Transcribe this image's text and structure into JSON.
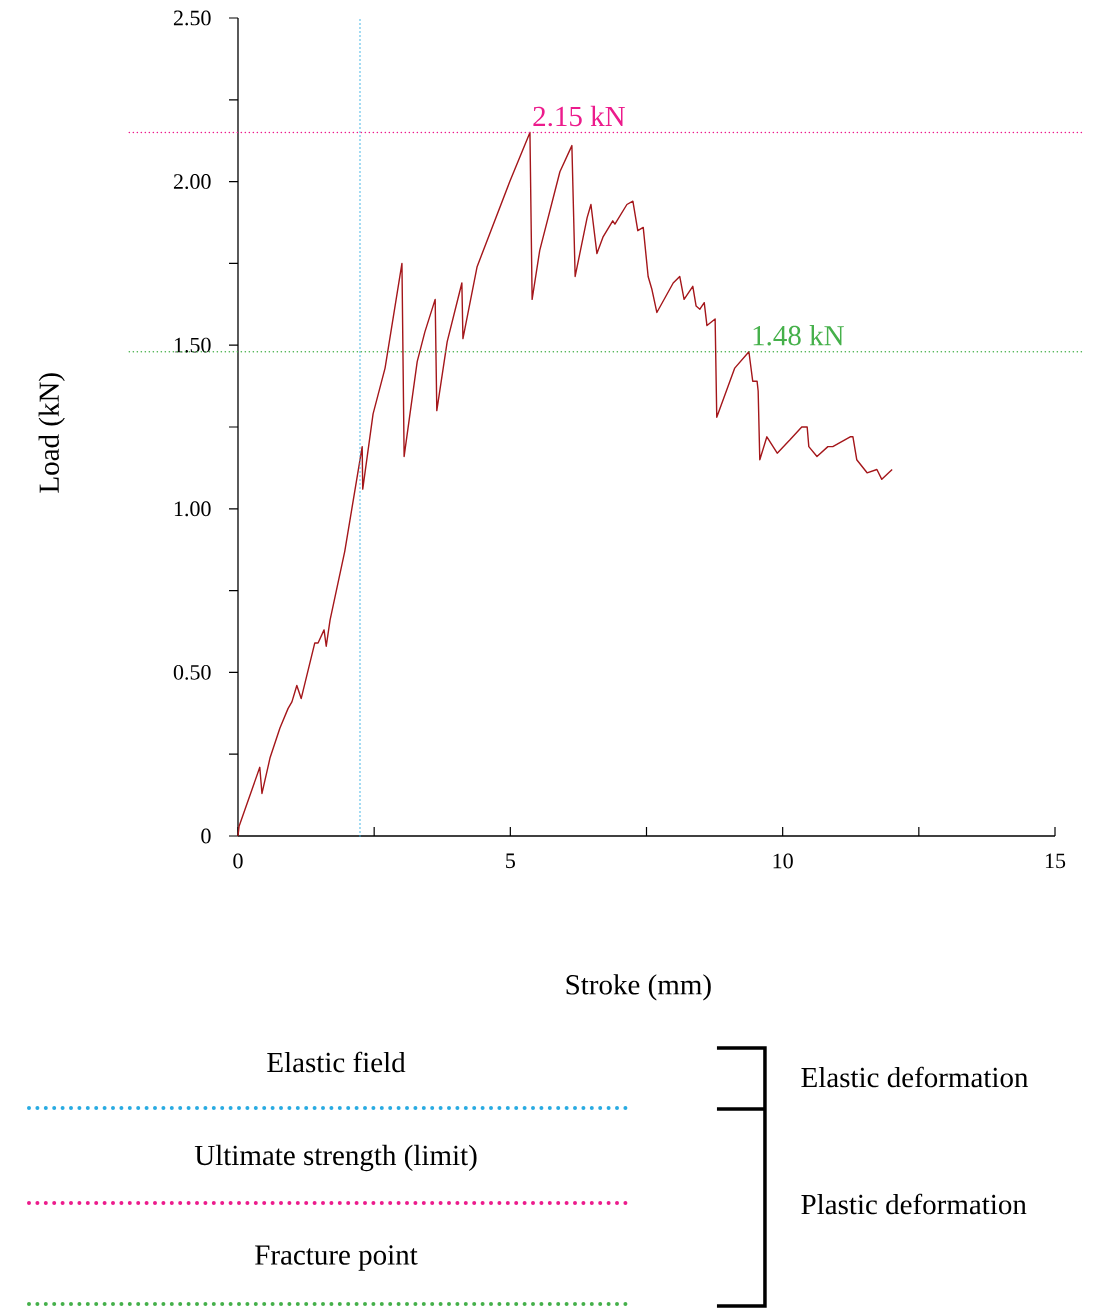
{
  "chart_data": {
    "type": "line",
    "xlabel": "Stroke (mm)",
    "ylabel": "Load (kN)",
    "xlim": [
      0,
      15
    ],
    "ylim": [
      0,
      2.5
    ],
    "xticks": [
      0,
      {
        "value": 2.5,
        "label": null
      },
      5,
      {
        "value": 7.5,
        "label": null
      },
      10,
      {
        "value": 12.5,
        "label": null
      },
      15
    ],
    "yticks": [
      0,
      {
        "value": 0.25,
        "label": null
      },
      {
        "value": 0.5,
        "label": "0.50"
      },
      {
        "value": 0.75,
        "label": null
      },
      {
        "value": 1.0,
        "label": "1.00"
      },
      {
        "value": 1.25,
        "label": null
      },
      {
        "value": 1.5,
        "label": "1.50"
      },
      {
        "value": 1.75,
        "label": null
      },
      {
        "value": 2.0,
        "label": "2.00"
      },
      {
        "value": 2.25,
        "label": null
      },
      {
        "value": 2.5,
        "label": "2.50"
      }
    ],
    "series": [
      {
        "color": "#a4161a",
        "x": [
          0,
          0.02,
          0.4,
          0.44,
          0.59,
          0.77,
          0.92,
          0.99,
          1.08,
          1.16,
          1.41,
          1.47,
          1.58,
          1.62,
          1.69,
          1.96,
          2.28,
          2.29,
          2.48,
          2.7,
          3.01,
          3.05,
          3.29,
          3.43,
          3.62,
          3.65,
          3.84,
          4.11,
          4.13,
          4.39,
          4.99,
          5.36,
          5.4,
          5.54,
          5.91,
          6.13,
          6.19,
          6.41,
          6.48,
          6.59,
          6.7,
          6.88,
          6.92,
          7.14,
          7.25,
          7.34,
          7.44,
          7.53,
          7.6,
          7.69,
          7.99,
          8.11,
          8.19,
          8.35,
          8.41,
          8.48,
          8.56,
          8.61,
          8.76,
          8.79,
          9.12,
          9.38,
          9.45,
          9.53,
          9.55,
          9.58,
          9.71,
          9.9,
          10.13,
          10.35,
          10.45,
          10.48,
          10.63,
          10.83,
          10.92,
          11.24,
          11.29,
          11.36,
          11.55,
          11.73,
          11.82,
          12.01
        ],
        "values": [
          0,
          0.03,
          0.21,
          0.13,
          0.24,
          0.33,
          0.39,
          0.41,
          0.46,
          0.42,
          0.59,
          0.59,
          0.63,
          0.58,
          0.66,
          0.87,
          1.19,
          1.06,
          1.29,
          1.43,
          1.75,
          1.16,
          1.45,
          1.54,
          1.64,
          1.3,
          1.51,
          1.69,
          1.52,
          1.74,
          2.0,
          2.15,
          1.64,
          1.79,
          2.03,
          2.11,
          1.71,
          1.89,
          1.93,
          1.78,
          1.83,
          1.88,
          1.87,
          1.93,
          1.94,
          1.85,
          1.86,
          1.71,
          1.67,
          1.6,
          1.69,
          1.71,
          1.64,
          1.68,
          1.62,
          1.61,
          1.63,
          1.56,
          1.58,
          1.28,
          1.43,
          1.48,
          1.39,
          1.39,
          1.36,
          1.15,
          1.22,
          1.17,
          1.21,
          1.25,
          1.25,
          1.19,
          1.16,
          1.19,
          1.19,
          1.22,
          1.22,
          1.15,
          1.11,
          1.12,
          1.09,
          1.12
        ]
      }
    ],
    "ref_lines": [
      {
        "axis": "x",
        "value": 2.24,
        "color": "#29abe2",
        "line_style": "dotted"
      },
      {
        "axis": "y",
        "value": 2.15,
        "label": "2.15 kN",
        "color": "#ec1b8c",
        "line_style": "dotted"
      },
      {
        "axis": "y",
        "value": 1.48,
        "label": "1.48 kN",
        "color": "#45b04a",
        "line_style": "dotted"
      }
    ],
    "annotations": [
      "Elastic field",
      "Ultimate strength (limit)",
      "Fracture point",
      "Elastic deformation",
      "Plastic deformation"
    ]
  }
}
